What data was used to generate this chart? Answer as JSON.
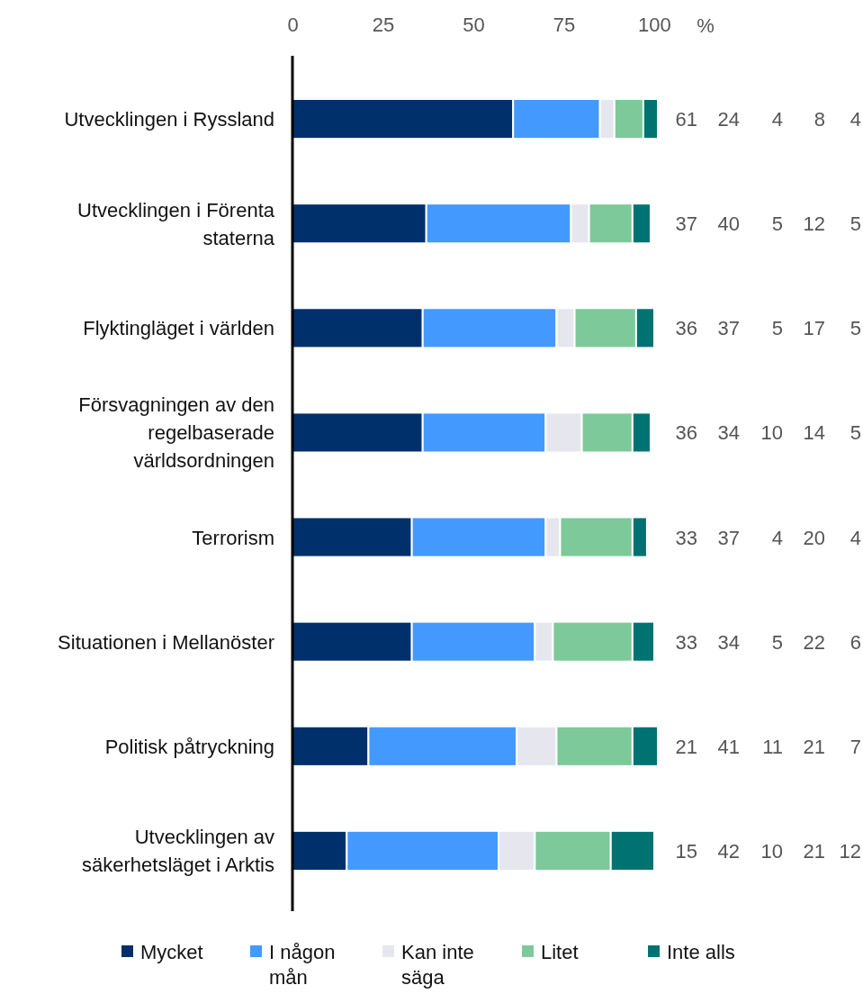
{
  "chart_data": {
    "type": "bar",
    "orientation": "horizontal",
    "stacked": true,
    "data_labels": true,
    "legend": "bottom",
    "grid": false,
    "xlabel": "%",
    "categories": [
      "Utvecklingen i Ryssland",
      "Utvecklingen i Förenta staterna",
      "Flyktingläget i världen",
      "Försvagningen av den regelbaserade världsordningen",
      "Terrorism",
      "Situationen i Mellanöster",
      "Politisk påtryckning",
      "Utvecklingen av säkerhetsläget i Arktis"
    ],
    "xlim": [
      0,
      101
    ],
    "xticks": [
      0,
      25,
      50,
      75,
      100
    ],
    "series": [
      {
        "name": "Mycket",
        "color": "#00306b",
        "values": [
          61,
          37,
          36,
          36,
          33,
          33,
          21,
          15
        ]
      },
      {
        "name": "I någon mån",
        "color": "#4499ff",
        "values": [
          24,
          40,
          37,
          34,
          37,
          34,
          41,
          42
        ]
      },
      {
        "name": "Kan inte säga",
        "color": "#e6e6ee",
        "values": [
          4,
          5,
          5,
          10,
          4,
          5,
          11,
          10
        ]
      },
      {
        "name": "Litet",
        "color": "#7dc99a",
        "values": [
          8,
          12,
          17,
          14,
          20,
          22,
          21,
          21
        ]
      },
      {
        "name": "Inte alls",
        "color": "#007272",
        "values": [
          4,
          5,
          5,
          5,
          4,
          6,
          7,
          12
        ]
      }
    ]
  }
}
